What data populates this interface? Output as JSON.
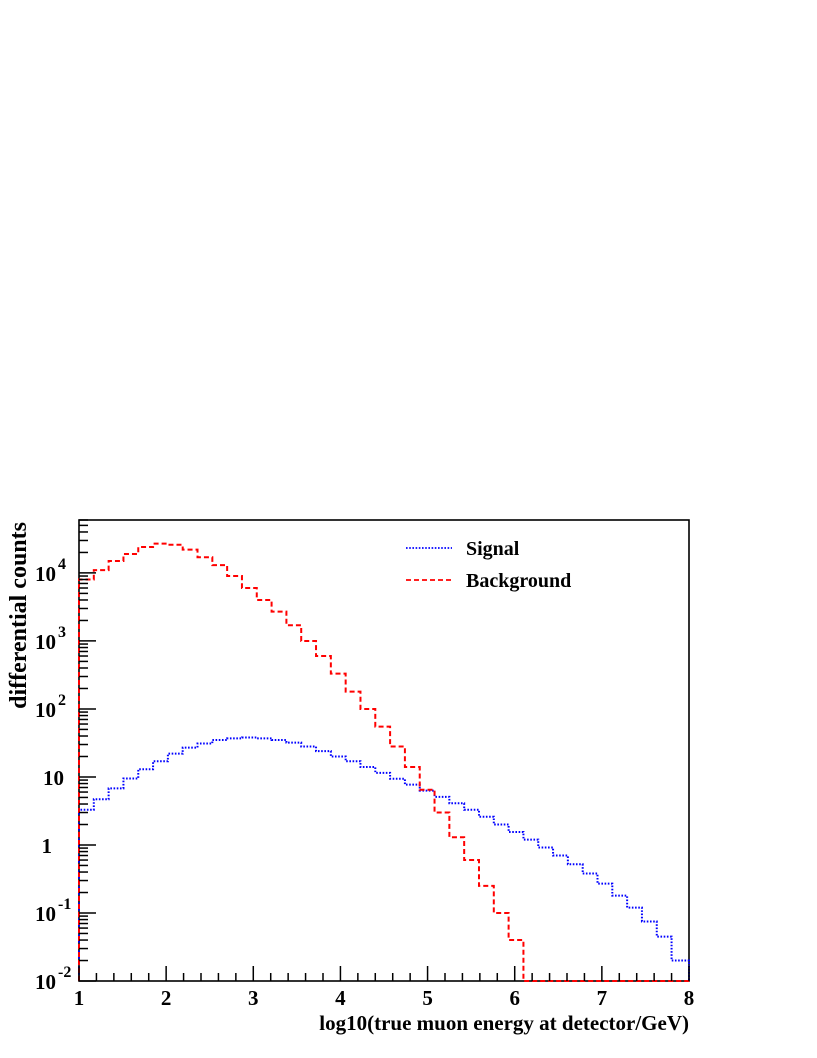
{
  "chart_data": {
    "type": "line",
    "title": "",
    "xlabel": "log10(true muon energy at detector/GeV)",
    "ylabel": "differential counts",
    "xlim": [
      1,
      8
    ],
    "ylim": [
      0.01,
      60000
    ],
    "yscale": "log",
    "grid": false,
    "legend_position": "top-right",
    "step": "histogram",
    "bin_edges": [
      1.0,
      1.17,
      1.34,
      1.51,
      1.68,
      1.85,
      2.02,
      2.19,
      2.36,
      2.53,
      2.7,
      2.87,
      3.04,
      3.21,
      3.38,
      3.55,
      3.72,
      3.89,
      4.06,
      4.23,
      4.4,
      4.57,
      4.74,
      4.91,
      5.08,
      5.25,
      5.42,
      5.59,
      5.76,
      5.93,
      6.1,
      6.27,
      6.44,
      6.61,
      6.78,
      6.95,
      7.12,
      7.29,
      7.46,
      7.63,
      7.8,
      8.0
    ],
    "x_ticks": [
      "1",
      "2",
      "3",
      "4",
      "5",
      "6",
      "7",
      "8"
    ],
    "y_ticks": [
      {
        "value": 10000,
        "base": "10",
        "exp": "4"
      },
      {
        "value": 1000,
        "base": "10",
        "exp": "3"
      },
      {
        "value": 100,
        "base": "10",
        "exp": "2"
      },
      {
        "value": 10,
        "base": "10",
        "exp": ""
      },
      {
        "value": 1,
        "base": "1",
        "exp": ""
      },
      {
        "value": 0.1,
        "base": "10",
        "exp": "-1"
      },
      {
        "value": 0.01,
        "base": "10",
        "exp": "-2"
      }
    ],
    "series": [
      {
        "name": "Signal",
        "color": "#0000ff",
        "style": "dotted",
        "values": [
          3.3,
          4.7,
          6.8,
          9.5,
          13,
          17,
          22,
          27,
          31,
          35,
          37,
          38,
          37,
          35,
          32,
          28,
          24,
          20,
          17,
          14,
          11.5,
          9.4,
          7.7,
          6.3,
          5.1,
          4.1,
          3.3,
          2.6,
          2.0,
          1.55,
          1.2,
          0.92,
          0.7,
          0.52,
          0.38,
          0.27,
          0.18,
          0.12,
          0.075,
          0.045,
          0.02
        ]
      },
      {
        "name": "Background",
        "color": "#ff0000",
        "style": "dashed",
        "values": [
          8000,
          11000,
          15000,
          19000,
          24000,
          27000,
          26000,
          22000,
          17000,
          13000,
          9000,
          6000,
          4000,
          2700,
          1700,
          1000,
          600,
          330,
          180,
          100,
          55,
          28,
          14,
          6.5,
          3.0,
          1.3,
          0.6,
          0.25,
          0.1,
          0.04,
          0.01,
          0.01,
          0.01,
          0.01,
          0.01,
          0.01,
          0.01,
          0.01,
          0.01,
          0.01,
          0.01
        ]
      }
    ]
  }
}
